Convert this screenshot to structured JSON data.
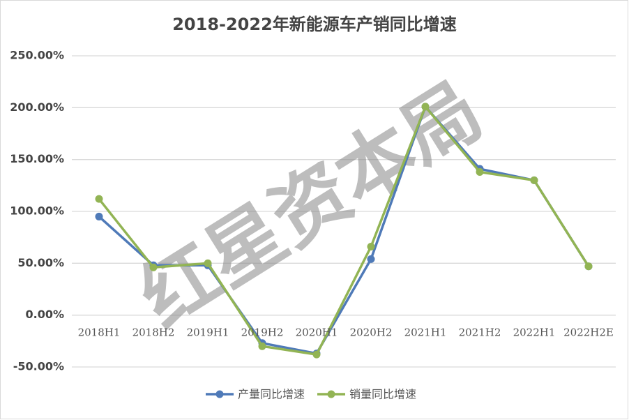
{
  "chart_data": {
    "type": "line",
    "title": "2018-2022年新能源车产销同比增速",
    "categories": [
      "2018H1",
      "2018H2",
      "2019H1",
      "2019H2",
      "2020H1",
      "2020H2",
      "2021H1",
      "2021H2",
      "2022H1",
      "2022H2E"
    ],
    "series": [
      {
        "name": "产量同比增速",
        "color": "#4f7ab8",
        "values": [
          95,
          48,
          48,
          -27,
          -37,
          54,
          201,
          141,
          130,
          47
        ]
      },
      {
        "name": "销量同比增速",
        "color": "#92b454",
        "values": [
          112,
          46,
          50,
          -30,
          -38,
          66,
          201,
          138,
          130,
          47
        ]
      }
    ],
    "ylim": [
      -50,
      250
    ],
    "yticks": [
      {
        "value": -50,
        "label": "-50.00%"
      },
      {
        "value": 0,
        "label": "0.00%"
      },
      {
        "value": 50,
        "label": "50.00%"
      },
      {
        "value": 100,
        "label": "100.00%"
      },
      {
        "value": 150,
        "label": "150.00%"
      },
      {
        "value": 200,
        "label": "200.00%"
      },
      {
        "value": 250,
        "label": "250.00%"
      }
    ],
    "grid": true,
    "legend": "bottom",
    "watermark": "红星资本局"
  }
}
